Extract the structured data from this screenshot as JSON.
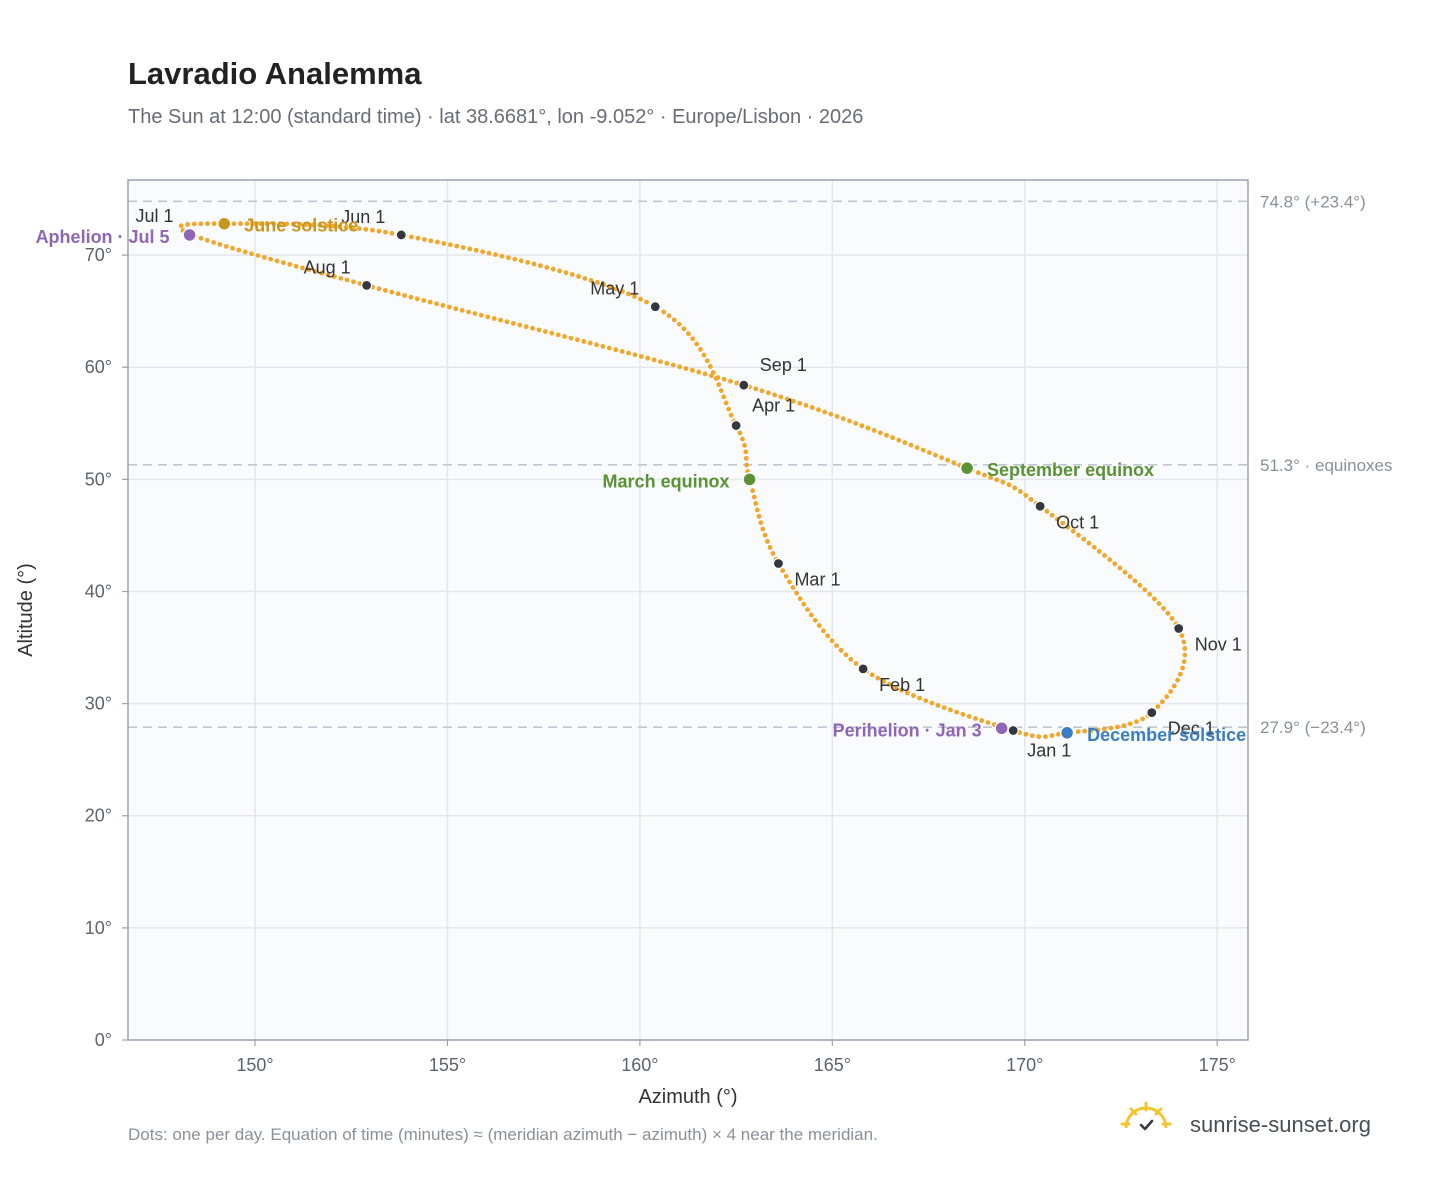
{
  "title": "Lavradio Analemma",
  "subtitle": "The Sun at 12:00 (standard time) · lat 38.6681°, lon -9.052° · Europe/Lisbon · 2026",
  "footnote": "Dots: one per day. Equation of time (minutes) ≈ (meridian azimuth − azimuth) × 4 near the meridian.",
  "brand": "sunrise-sunset.org",
  "colors": {
    "path": "#F2A62A",
    "month_marker": "#333840",
    "equinox": "#5A9234",
    "june_solstice": "#C9961E",
    "december_solstice": "#3B7DC2",
    "apsis": "#8F66B5",
    "plot_bg": "#F9FBFD",
    "grid": "#E3E8EE",
    "ref_line": "#C0C7D1",
    "frame": "#9AA3B0"
  },
  "chart_data": {
    "type": "scatter",
    "title": "Lavradio Analemma",
    "xlabel": "Azimuth (°)",
    "ylabel": "Altitude (°)",
    "xlim": [
      146.7,
      175.8
    ],
    "ylim": [
      0,
      76.7
    ],
    "xticks": [
      "150°",
      "155°",
      "160°",
      "165°",
      "170°",
      "175°"
    ],
    "xtick_values": [
      150,
      155,
      160,
      165,
      170,
      175
    ],
    "yticks": [
      "0°",
      "10°",
      "20°",
      "30°",
      "40°",
      "50°",
      "60°",
      "70°"
    ],
    "ytick_values": [
      0,
      10,
      20,
      30,
      40,
      50,
      60,
      70
    ],
    "grid": true,
    "path_anchors": [
      {
        "x": 169.7,
        "y": 27.6
      },
      {
        "x": 165.8,
        "y": 33.1
      },
      {
        "x": 163.6,
        "y": 42.5
      },
      {
        "x": 162.85,
        "y": 50.0
      },
      {
        "x": 162.5,
        "y": 54.8
      },
      {
        "x": 160.4,
        "y": 65.4
      },
      {
        "x": 153.8,
        "y": 71.8
      },
      {
        "x": 149.2,
        "y": 72.8
      },
      {
        "x": 148.3,
        "y": 71.9
      },
      {
        "x": 152.9,
        "y": 67.3
      },
      {
        "x": 162.7,
        "y": 58.4
      },
      {
        "x": 168.5,
        "y": 51.0
      },
      {
        "x": 170.4,
        "y": 47.6
      },
      {
        "x": 174.0,
        "y": 36.7
      },
      {
        "x": 173.3,
        "y": 29.2
      },
      {
        "x": 171.1,
        "y": 27.4
      },
      {
        "x": 169.7,
        "y": 27.6
      }
    ],
    "reference_lines": [
      {
        "y": 74.8,
        "label": "74.8° (+23.4°)"
      },
      {
        "y": 51.3,
        "label": "51.3° · equinoxes"
      },
      {
        "y": 27.9,
        "label": "27.9° (−23.4°)"
      }
    ],
    "month_markers": [
      {
        "label": "Jan 1",
        "x": 169.7,
        "y": 27.6,
        "anchor": "below"
      },
      {
        "label": "Feb 1",
        "x": 165.8,
        "y": 33.1,
        "anchor": "below-right"
      },
      {
        "label": "Mar 1",
        "x": 163.6,
        "y": 42.5,
        "anchor": "below-right"
      },
      {
        "label": "Apr 1",
        "x": 162.5,
        "y": 54.8,
        "anchor": "above-right"
      },
      {
        "label": "May 1",
        "x": 160.4,
        "y": 65.4,
        "anchor": "above-left"
      },
      {
        "label": "Jun 1",
        "x": 153.8,
        "y": 71.8,
        "anchor": "above-left"
      },
      {
        "label": "Jul 1",
        "x": 148.3,
        "y": 71.9,
        "anchor": "above-left"
      },
      {
        "label": "Aug 1",
        "x": 152.9,
        "y": 67.3,
        "anchor": "above-left"
      },
      {
        "label": "Sep 1",
        "x": 162.7,
        "y": 58.4,
        "anchor": "above-right"
      },
      {
        "label": "Oct 1",
        "x": 170.4,
        "y": 47.6,
        "anchor": "below-right"
      },
      {
        "label": "Nov 1",
        "x": 174.0,
        "y": 36.7,
        "anchor": "below-right"
      },
      {
        "label": "Dec 1",
        "x": 173.3,
        "y": 29.2,
        "anchor": "below-right"
      }
    ],
    "events": [
      {
        "label": "March equinox",
        "x": 162.85,
        "y": 50.0,
        "color_key": "equinox",
        "side": "left"
      },
      {
        "label": "September equinox",
        "x": 168.5,
        "y": 51.0,
        "color_key": "equinox",
        "side": "right"
      },
      {
        "label": "June solstice",
        "x": 149.2,
        "y": 72.8,
        "color_key": "june_solstice",
        "side": "right"
      },
      {
        "label": "December solstice",
        "x": 171.1,
        "y": 27.4,
        "color_key": "december_solstice",
        "side": "right"
      },
      {
        "label": "Aphelion · Jul 5",
        "x": 148.3,
        "y": 71.8,
        "color_key": "apsis",
        "side": "left"
      },
      {
        "label": "Perihelion · Jan 3",
        "x": 169.4,
        "y": 27.8,
        "color_key": "apsis",
        "side": "left"
      }
    ]
  }
}
